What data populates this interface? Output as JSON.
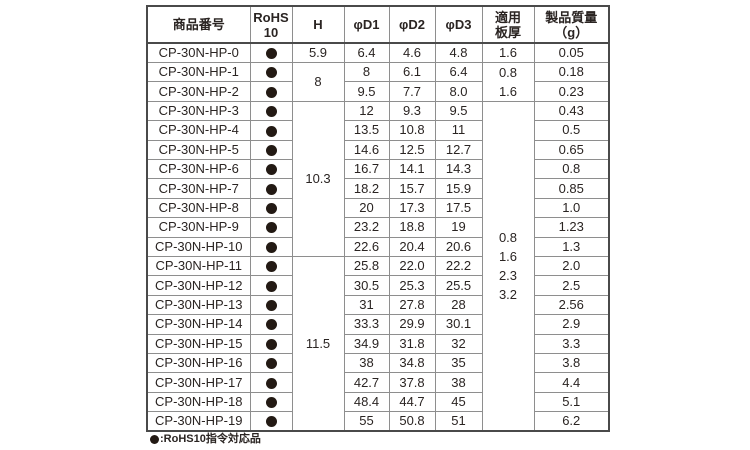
{
  "table": {
    "columns": [
      {
        "id": "product",
        "label_lines": [
          "商品番号"
        ]
      },
      {
        "id": "rohs",
        "label_lines": [
          "RoHS",
          "10"
        ]
      },
      {
        "id": "h",
        "label_lines": [
          "H"
        ]
      },
      {
        "id": "d1",
        "label_lines": [
          "φD1"
        ]
      },
      {
        "id": "d2",
        "label_lines": [
          "φD2"
        ]
      },
      {
        "id": "d3",
        "label_lines": [
          "φD3"
        ]
      },
      {
        "id": "plate",
        "label_lines": [
          "適用",
          "板厚"
        ]
      },
      {
        "id": "mass",
        "label_lines": [
          "製品質量",
          "（g）"
        ]
      }
    ],
    "rows": [
      {
        "product": "CP-30N-HP-0",
        "rohs": "●",
        "d1": "6.4",
        "d2": "4.6",
        "d3": "4.8",
        "mass": "0.05"
      },
      {
        "product": "CP-30N-HP-1",
        "rohs": "●",
        "d1": "8",
        "d2": "6.1",
        "d3": "6.4",
        "mass": "0.18"
      },
      {
        "product": "CP-30N-HP-2",
        "rohs": "●",
        "d1": "9.5",
        "d2": "7.7",
        "d3": "8.0",
        "mass": "0.23"
      },
      {
        "product": "CP-30N-HP-3",
        "rohs": "●",
        "d1": "12",
        "d2": "9.3",
        "d3": "9.5",
        "mass": "0.43"
      },
      {
        "product": "CP-30N-HP-4",
        "rohs": "●",
        "d1": "13.5",
        "d2": "10.8",
        "d3": "11",
        "mass": "0.5"
      },
      {
        "product": "CP-30N-HP-5",
        "rohs": "●",
        "d1": "14.6",
        "d2": "12.5",
        "d3": "12.7",
        "mass": "0.65"
      },
      {
        "product": "CP-30N-HP-6",
        "rohs": "●",
        "d1": "16.7",
        "d2": "14.1",
        "d3": "14.3",
        "mass": "0.8"
      },
      {
        "product": "CP-30N-HP-7",
        "rohs": "●",
        "d1": "18.2",
        "d2": "15.7",
        "d3": "15.9",
        "mass": "0.85"
      },
      {
        "product": "CP-30N-HP-8",
        "rohs": "●",
        "d1": "20",
        "d2": "17.3",
        "d3": "17.5",
        "mass": "1.0"
      },
      {
        "product": "CP-30N-HP-9",
        "rohs": "●",
        "d1": "23.2",
        "d2": "18.8",
        "d3": "19",
        "mass": "1.23"
      },
      {
        "product": "CP-30N-HP-10",
        "rohs": "●",
        "d1": "22.6",
        "d2": "20.4",
        "d3": "20.6",
        "mass": "1.3"
      },
      {
        "product": "CP-30N-HP-11",
        "rohs": "●",
        "d1": "25.8",
        "d2": "22.0",
        "d3": "22.2",
        "mass": "2.0"
      },
      {
        "product": "CP-30N-HP-12",
        "rohs": "●",
        "d1": "30.5",
        "d2": "25.3",
        "d3": "25.5",
        "mass": "2.5"
      },
      {
        "product": "CP-30N-HP-13",
        "rohs": "●",
        "d1": "31",
        "d2": "27.8",
        "d3": "28",
        "mass": "2.56"
      },
      {
        "product": "CP-30N-HP-14",
        "rohs": "●",
        "d1": "33.3",
        "d2": "29.9",
        "d3": "30.1",
        "mass": "2.9"
      },
      {
        "product": "CP-30N-HP-15",
        "rohs": "●",
        "d1": "34.9",
        "d2": "31.8",
        "d3": "32",
        "mass": "3.3"
      },
      {
        "product": "CP-30N-HP-16",
        "rohs": "●",
        "d1": "38",
        "d2": "34.8",
        "d3": "35",
        "mass": "3.8"
      },
      {
        "product": "CP-30N-HP-17",
        "rohs": "●",
        "d1": "42.7",
        "d2": "37.8",
        "d3": "38",
        "mass": "4.4"
      },
      {
        "product": "CP-30N-HP-18",
        "rohs": "●",
        "d1": "48.4",
        "d2": "44.7",
        "d3": "45",
        "mass": "5.1"
      },
      {
        "product": "CP-30N-HP-19",
        "rohs": "●",
        "d1": "55",
        "d2": "50.8",
        "d3": "51",
        "mass": "6.2"
      }
    ],
    "h_cells": [
      {
        "row": 0,
        "span": 1,
        "lines": [
          "5.9"
        ]
      },
      {
        "row": 1,
        "span": 2,
        "lines": [
          "8"
        ]
      },
      {
        "row": 3,
        "span": 8,
        "lines": [
          "10.3"
        ]
      },
      {
        "row": 11,
        "span": 9,
        "lines": [
          "11.5"
        ]
      }
    ],
    "plate_cells": [
      {
        "row": 0,
        "span": 1,
        "lines": [
          "1.6"
        ]
      },
      {
        "row": 1,
        "span": 2,
        "lines": [
          "0.8",
          "1.6"
        ]
      },
      {
        "row": 3,
        "span": 17,
        "lines": [
          "0.8",
          "1.6",
          "2.3",
          "3.2"
        ]
      }
    ]
  },
  "footnote": {
    "mark": "●",
    "text": ":RoHS10指令対応品"
  },
  "colors": {
    "text": "#2a2422",
    "grid_line": "#8e8e8e",
    "outer_line": "#4a4a4a",
    "rohs_dot": "#231a14",
    "background": "#ffffff"
  }
}
